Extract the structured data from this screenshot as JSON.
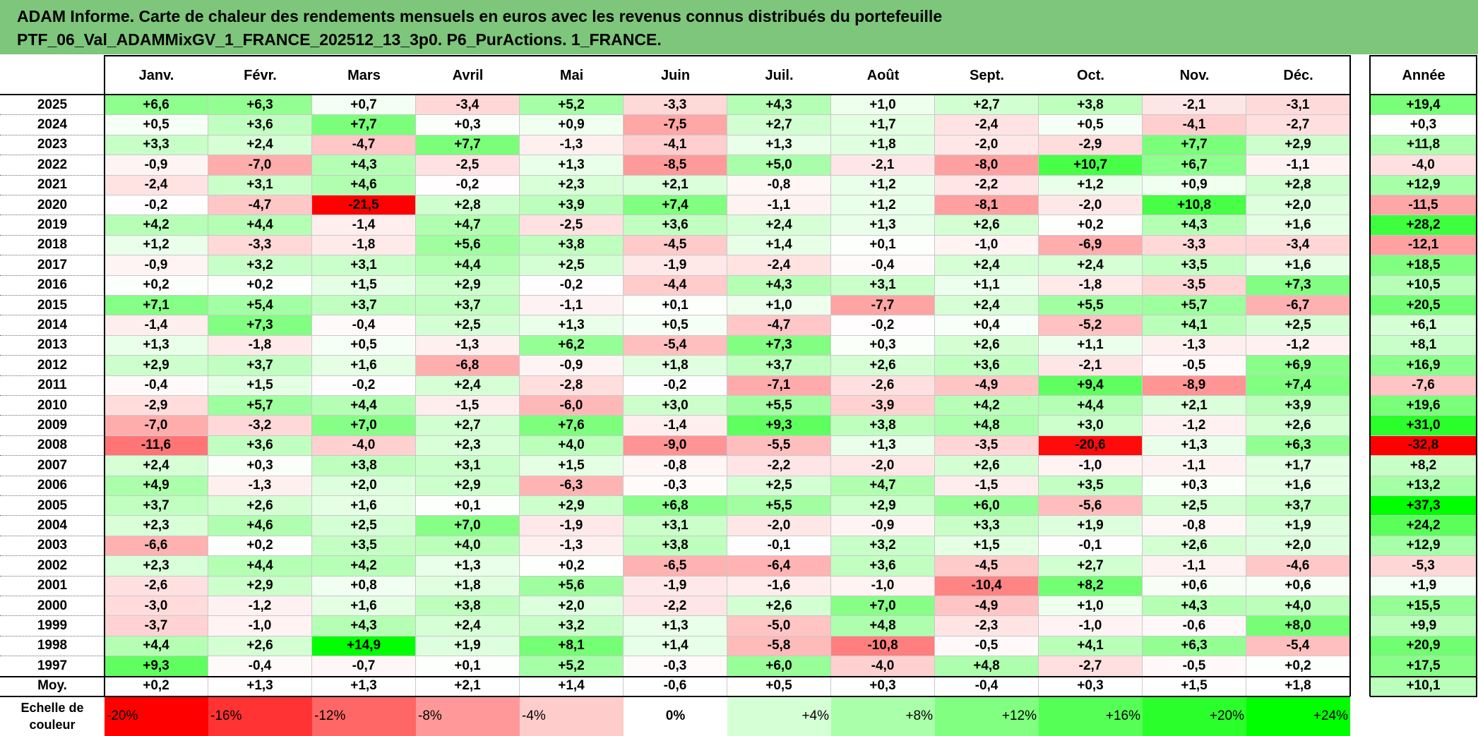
{
  "title": {
    "line1": "ADAM Informe. Carte de chaleur des rendements mensuels en euros avec les revenus connus distribués du portefeuille",
    "line2": "PTF_06_Val_ADAMMixGV_1_FRANCE_202512_13_3p0. P6_PurActions. 1_FRANCE."
  },
  "colors": {
    "title_bg": "#7dc67b",
    "negative_max": "#ff0000",
    "neutral": "#ffffff",
    "positive_max": "#00ff00"
  },
  "scale_label": {
    "line1": "Echelle de",
    "line2": "couleur"
  },
  "chart_data": {
    "type": "heatmap",
    "columns": [
      "Janv.",
      "Févr.",
      "Mars",
      "Avril",
      "Mai",
      "Juin",
      "Juil.",
      "Août",
      "Sept.",
      "Oct.",
      "Nov.",
      "Déc."
    ],
    "total_column": "Année",
    "rows": [
      {
        "year": "2025",
        "months": [
          "+6,6",
          "+6,3",
          "+0,7",
          "-3,4",
          "+5,2",
          "-3,3",
          "+4,3",
          "+1,0",
          "+2,7",
          "+3,8",
          "-2,1",
          "-3,1"
        ],
        "annual": "+19,4"
      },
      {
        "year": "2024",
        "months": [
          "+0,5",
          "+3,6",
          "+7,7",
          "+0,3",
          "+0,9",
          "-7,5",
          "+2,7",
          "+1,7",
          "-2,4",
          "+0,5",
          "-4,1",
          "-2,7"
        ],
        "annual": "+0,3"
      },
      {
        "year": "2023",
        "months": [
          "+3,3",
          "+2,4",
          "-4,7",
          "+7,7",
          "-1,3",
          "-4,1",
          "+1,3",
          "+1,8",
          "-2,0",
          "-2,9",
          "+7,7",
          "+2,9"
        ],
        "annual": "+11,8"
      },
      {
        "year": "2022",
        "months": [
          "-0,9",
          "-7,0",
          "+4,3",
          "-2,5",
          "+1,3",
          "-8,5",
          "+5,0",
          "-2,1",
          "-8,0",
          "+10,7",
          "+6,7",
          "-1,1"
        ],
        "annual": "-4,0"
      },
      {
        "year": "2021",
        "months": [
          "-2,4",
          "+3,1",
          "+4,6",
          "-0,2",
          "+2,3",
          "+2,1",
          "-0,8",
          "+1,2",
          "-2,2",
          "+1,2",
          "+0,9",
          "+2,8"
        ],
        "annual": "+12,9"
      },
      {
        "year": "2020",
        "months": [
          "-0,2",
          "-4,7",
          "-21,5",
          "+2,8",
          "+3,9",
          "+7,4",
          "-1,1",
          "+1,2",
          "-8,1",
          "-2,0",
          "+10,8",
          "+2,0"
        ],
        "annual": "-11,5"
      },
      {
        "year": "2019",
        "months": [
          "+4,2",
          "+4,4",
          "-1,4",
          "+4,7",
          "-2,5",
          "+3,6",
          "+2,4",
          "+1,3",
          "+2,6",
          "+0,2",
          "+4,3",
          "+1,6"
        ],
        "annual": "+28,2"
      },
      {
        "year": "2018",
        "months": [
          "+1,2",
          "-3,3",
          "-1,8",
          "+5,6",
          "+3,8",
          "-4,5",
          "+1,4",
          "+0,1",
          "-1,0",
          "-6,9",
          "-3,3",
          "-3,4"
        ],
        "annual": "-12,1"
      },
      {
        "year": "2017",
        "months": [
          "-0,9",
          "+3,2",
          "+3,1",
          "+4,4",
          "+2,5",
          "-1,9",
          "-2,4",
          "-0,4",
          "+2,4",
          "+2,4",
          "+3,5",
          "+1,6"
        ],
        "annual": "+18,5"
      },
      {
        "year": "2016",
        "months": [
          "+0,2",
          "+0,2",
          "+1,5",
          "+2,9",
          "-0,2",
          "-4,4",
          "+4,3",
          "+3,1",
          "+1,1",
          "-1,8",
          "-3,5",
          "+7,3"
        ],
        "annual": "+10,5"
      },
      {
        "year": "2015",
        "months": [
          "+7,1",
          "+5,4",
          "+3,7",
          "+3,7",
          "-1,1",
          "+0,1",
          "+1,0",
          "-7,7",
          "+2,4",
          "+5,5",
          "+5,7",
          "-6,7"
        ],
        "annual": "+20,5"
      },
      {
        "year": "2014",
        "months": [
          "-1,4",
          "+7,3",
          "-0,4",
          "+2,5",
          "+1,3",
          "+0,5",
          "-4,7",
          "-0,2",
          "+0,4",
          "-5,2",
          "+4,1",
          "+2,5"
        ],
        "annual": "+6,1"
      },
      {
        "year": "2013",
        "months": [
          "+1,3",
          "-1,8",
          "+0,5",
          "-1,3",
          "+6,2",
          "-5,4",
          "+7,3",
          "+0,3",
          "+2,6",
          "+1,1",
          "-1,3",
          "-1,2"
        ],
        "annual": "+8,1"
      },
      {
        "year": "2012",
        "months": [
          "+2,9",
          "+3,7",
          "+1,6",
          "-6,8",
          "-0,9",
          "+1,8",
          "+3,7",
          "+2,6",
          "+3,6",
          "-2,1",
          "-0,5",
          "+6,9"
        ],
        "annual": "+16,9"
      },
      {
        "year": "2011",
        "months": [
          "-0,4",
          "+1,5",
          "-0,2",
          "+2,4",
          "-2,8",
          "-0,2",
          "-7,1",
          "-2,6",
          "-4,9",
          "+9,4",
          "-8,9",
          "+7,4"
        ],
        "annual": "-7,6"
      },
      {
        "year": "2010",
        "months": [
          "-2,9",
          "+5,7",
          "+4,4",
          "-1,5",
          "-6,0",
          "+3,0",
          "+5,5",
          "-3,9",
          "+4,2",
          "+4,4",
          "+2,1",
          "+3,9"
        ],
        "annual": "+19,6"
      },
      {
        "year": "2009",
        "months": [
          "-7,0",
          "-3,2",
          "+7,0",
          "+2,7",
          "+7,6",
          "-1,4",
          "+9,3",
          "+3,8",
          "+4,8",
          "+3,0",
          "-1,2",
          "+2,6"
        ],
        "annual": "+31,0"
      },
      {
        "year": "2008",
        "months": [
          "-11,6",
          "+3,6",
          "-4,0",
          "+2,3",
          "+4,0",
          "-9,0",
          "-5,5",
          "+1,3",
          "-3,5",
          "-20,6",
          "+1,3",
          "+6,3"
        ],
        "annual": "-32,8"
      },
      {
        "year": "2007",
        "months": [
          "+2,4",
          "+0,3",
          "+3,8",
          "+3,1",
          "+1,5",
          "-0,8",
          "-2,2",
          "-2,0",
          "+2,6",
          "-1,0",
          "-1,1",
          "+1,7"
        ],
        "annual": "+8,2"
      },
      {
        "year": "2006",
        "months": [
          "+4,9",
          "-1,3",
          "+2,0",
          "+2,9",
          "-6,3",
          "-0,3",
          "+2,5",
          "+4,7",
          "-1,5",
          "+3,5",
          "+0,3",
          "+1,6"
        ],
        "annual": "+13,2"
      },
      {
        "year": "2005",
        "months": [
          "+3,7",
          "+2,6",
          "+1,6",
          "+0,1",
          "+2,9",
          "+6,8",
          "+5,5",
          "+2,9",
          "+6,0",
          "-5,6",
          "+2,5",
          "+3,7"
        ],
        "annual": "+37,3"
      },
      {
        "year": "2004",
        "months": [
          "+2,3",
          "+4,6",
          "+2,5",
          "+7,0",
          "-1,9",
          "+3,1",
          "-2,0",
          "-0,9",
          "+3,3",
          "+1,9",
          "-0,8",
          "+1,9"
        ],
        "annual": "+24,2"
      },
      {
        "year": "2003",
        "months": [
          "-6,6",
          "+0,2",
          "+3,5",
          "+4,0",
          "-1,3",
          "+3,8",
          "-0,1",
          "+3,2",
          "+1,5",
          "-0,1",
          "+2,6",
          "+2,0"
        ],
        "annual": "+12,9"
      },
      {
        "year": "2002",
        "months": [
          "+2,3",
          "+4,4",
          "+4,2",
          "+1,3",
          "+0,2",
          "-6,5",
          "-6,4",
          "+3,6",
          "-4,5",
          "+2,7",
          "-1,1",
          "-4,6"
        ],
        "annual": "-5,3"
      },
      {
        "year": "2001",
        "months": [
          "-2,6",
          "+2,9",
          "+0,8",
          "+1,8",
          "+5,6",
          "-1,9",
          "-1,6",
          "-1,0",
          "-10,4",
          "+8,2",
          "+0,6",
          "+0,6"
        ],
        "annual": "+1,9"
      },
      {
        "year": "2000",
        "months": [
          "-3,0",
          "-1,2",
          "+1,6",
          "+3,8",
          "+2,0",
          "-2,2",
          "+2,6",
          "+7,0",
          "-4,9",
          "+1,0",
          "+4,3",
          "+4,0"
        ],
        "annual": "+15,5"
      },
      {
        "year": "1999",
        "months": [
          "-3,7",
          "-1,0",
          "+4,3",
          "+2,4",
          "+3,2",
          "+1,3",
          "-5,0",
          "+4,8",
          "-2,3",
          "-1,0",
          "-0,6",
          "+8,0"
        ],
        "annual": "+9,9"
      },
      {
        "year": "1998",
        "months": [
          "+4,4",
          "+2,6",
          "+14,9",
          "+1,9",
          "+8,1",
          "+1,4",
          "-5,8",
          "-10,8",
          "-0,5",
          "+4,1",
          "+6,3",
          "-5,4"
        ],
        "annual": "+20,9"
      },
      {
        "year": "1997",
        "months": [
          "+9,3",
          "-0,4",
          "-0,7",
          "+0,1",
          "+5,2",
          "-0,3",
          "+6,0",
          "-4,0",
          "+4,8",
          "-2,7",
          "-0,5",
          "+0,2"
        ],
        "annual": "+17,5"
      }
    ],
    "average_row": {
      "label": "Moy.",
      "months": [
        "+0,2",
        "+1,3",
        "+1,3",
        "+2,1",
        "+1,4",
        "-0,6",
        "+0,5",
        "+0,3",
        "-0,4",
        "+0,3",
        "+1,5",
        "+1,8"
      ],
      "annual": "+10,1"
    },
    "color_scale": [
      "-20%",
      "-16%",
      "-12%",
      "-8%",
      "-4%",
      "0%",
      "+4%",
      "+8%",
      "+12%",
      "+16%",
      "+20%",
      "+24%"
    ],
    "monthly_color_range": [
      -21.5,
      14.9
    ],
    "annual_color_range": [
      -32.8,
      37.3
    ]
  }
}
